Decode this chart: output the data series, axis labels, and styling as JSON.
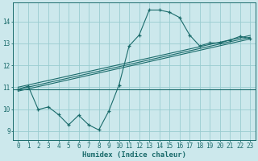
{
  "xlabel": "Humidex (Indice chaleur)",
  "bg_color": "#cce8ec",
  "grid_color": "#99ccd0",
  "line_color": "#1a6b6b",
  "xlim": [
    -0.5,
    23.5
  ],
  "ylim": [
    8.6,
    14.85
  ],
  "xticks": [
    0,
    1,
    2,
    3,
    4,
    5,
    6,
    7,
    8,
    9,
    10,
    11,
    12,
    13,
    14,
    15,
    16,
    17,
    18,
    19,
    20,
    21,
    22,
    23
  ],
  "yticks": [
    9,
    10,
    11,
    12,
    13,
    14
  ],
  "curve_x": [
    0,
    1,
    2,
    3,
    4,
    5,
    6,
    7,
    8,
    9,
    10,
    11,
    12,
    13,
    14,
    15,
    16,
    17,
    18,
    19,
    20,
    21,
    22,
    23
  ],
  "curve_y": [
    10.9,
    11.05,
    9.98,
    10.1,
    9.75,
    9.28,
    9.72,
    9.28,
    9.05,
    9.92,
    11.1,
    12.88,
    13.38,
    14.52,
    14.52,
    14.42,
    14.18,
    13.38,
    12.88,
    13.02,
    13.02,
    13.15,
    13.32,
    13.22
  ],
  "reg_lines": [
    {
      "x": [
        0,
        23
      ],
      "y": [
        10.9,
        13.28
      ]
    },
    {
      "x": [
        0,
        23
      ],
      "y": [
        10.82,
        13.2
      ]
    },
    {
      "x": [
        0,
        23
      ],
      "y": [
        11.0,
        13.36
      ]
    },
    {
      "x": [
        -0.5,
        23.5
      ],
      "y": [
        10.9,
        10.9
      ]
    }
  ],
  "tick_fontsize": 5.5,
  "label_fontsize": 6.5
}
